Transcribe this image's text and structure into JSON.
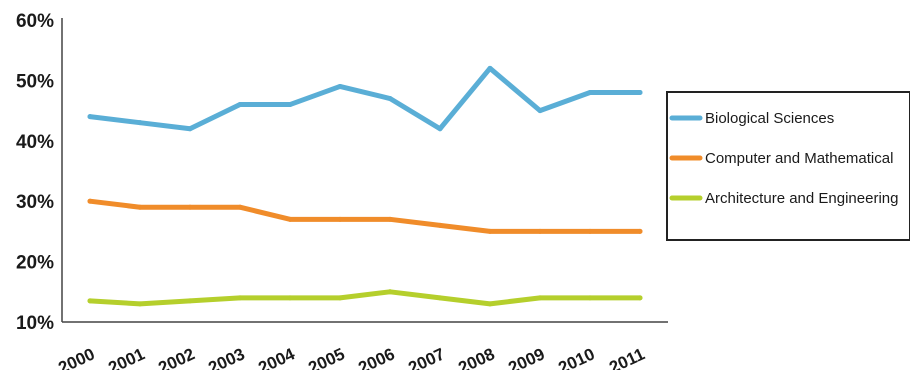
{
  "chart_data": {
    "type": "line",
    "x": [
      "2000",
      "2001",
      "2002",
      "2003",
      "2004",
      "2005",
      "2006",
      "2007",
      "2008",
      "2009",
      "2010",
      "2011"
    ],
    "yticks": [
      "10%",
      "20%",
      "30%",
      "40%",
      "50%",
      "60%"
    ],
    "ylim": [
      10,
      60
    ],
    "series": [
      {
        "name": "Biological Sciences",
        "color": "#5aaed6",
        "values": [
          44,
          43,
          42,
          46,
          46,
          49,
          47,
          42,
          52,
          45,
          48,
          48
        ]
      },
      {
        "name": "Computer and Mathematical",
        "color": "#f08c2a",
        "values": [
          30,
          29,
          29,
          29,
          27,
          27,
          27,
          26,
          25,
          25,
          25,
          25
        ]
      },
      {
        "name": "Architecture and Engineering",
        "color": "#b5cf2c",
        "values": [
          13.5,
          13,
          13.5,
          14,
          14,
          14,
          15,
          14,
          13,
          14,
          14,
          14
        ]
      }
    ],
    "legend_position": "right",
    "grid": false
  }
}
